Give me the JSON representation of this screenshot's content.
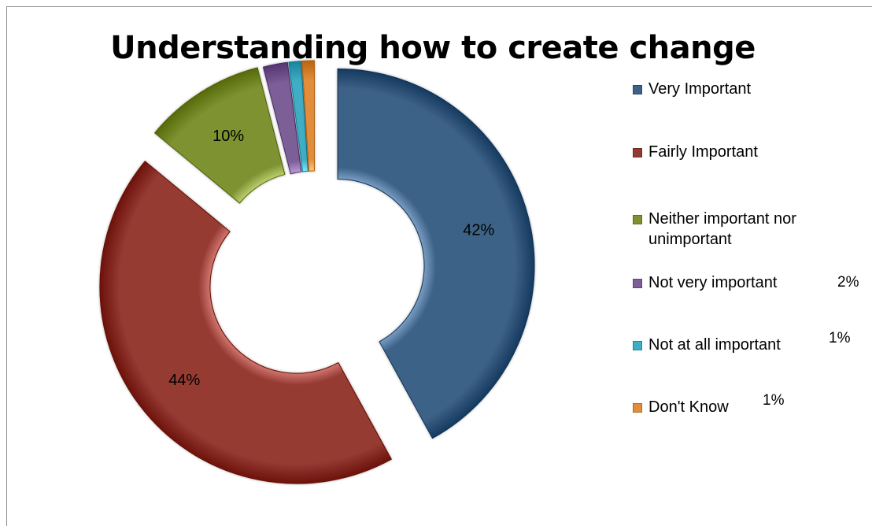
{
  "chart_data": {
    "type": "pie",
    "title": "Understanding how to create change",
    "categories": [
      "Very Important",
      "Fairly Important",
      "Neither important nor unimportant",
      "Not very important",
      "Not at all important",
      "Don't Know"
    ],
    "values": [
      42,
      44,
      10,
      2,
      1,
      1
    ],
    "unit": "%",
    "donut": true,
    "exploded": true,
    "legend": "right",
    "data_labels": [
      "42%",
      "44%",
      "10%",
      "",
      "",
      ""
    ],
    "legend_value_labels": [
      "",
      "",
      "",
      "2%",
      "1%",
      "1%"
    ],
    "colors": [
      "#3e6287",
      "#953a33",
      "#7f9232",
      "#7d5e98",
      "#3fadc5",
      "#e18d3a"
    ]
  }
}
